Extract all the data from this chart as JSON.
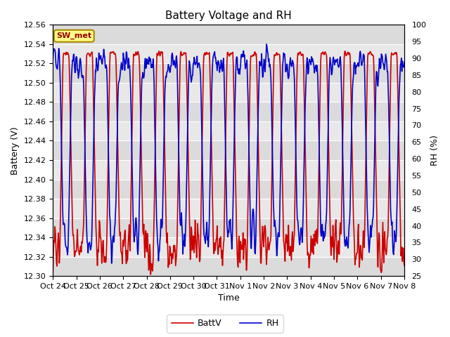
{
  "title": "Battery Voltage and RH",
  "xlabel": "Time",
  "ylabel_left": "Battery (V)",
  "ylabel_right": "RH (%)",
  "ylim_left": [
    12.3,
    12.56
  ],
  "ylim_right": [
    25,
    100
  ],
  "yticks_left": [
    12.3,
    12.32,
    12.34,
    12.36,
    12.38,
    12.4,
    12.42,
    12.44,
    12.46,
    12.48,
    12.5,
    12.52,
    12.54,
    12.56
  ],
  "yticks_right": [
    25,
    30,
    35,
    40,
    45,
    50,
    55,
    60,
    65,
    70,
    75,
    80,
    85,
    90,
    95,
    100
  ],
  "xtick_labels": [
    "Oct 24",
    "Oct 25",
    "Oct 26",
    "Oct 27",
    "Oct 28",
    "Oct 29",
    "Oct 30",
    "Oct 31",
    "Nov 1",
    "Nov 2",
    "Nov 3",
    "Nov 4",
    "Nov 5",
    "Nov 6",
    "Nov 7",
    "Nov 8"
  ],
  "color_batt": "#cc0000",
  "color_rh": "#0000cc",
  "label_batt": "BattV",
  "label_rh": "RH",
  "station_label": "SW_met",
  "fig_facecolor": "#ffffff",
  "plot_facecolor": "#e8e8e8",
  "grid_color": "#ffffff",
  "linewidth": 1.2,
  "title_fontsize": 11,
  "tick_fontsize": 8,
  "label_fontsize": 9
}
